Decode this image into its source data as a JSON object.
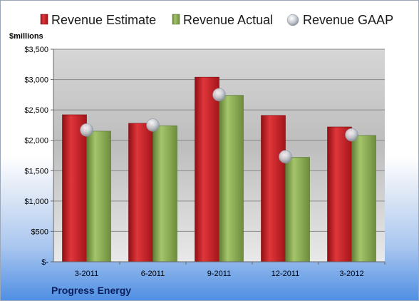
{
  "chart_data": {
    "type": "bar",
    "title": "",
    "unit_label": "$millions",
    "footer": "Progress Energy",
    "categories": [
      "3-2011",
      "6-2011",
      "9-2011",
      "12-2011",
      "3-2012"
    ],
    "y_ticks": [
      "$-",
      "$500",
      "$1,000",
      "$1,500",
      "$2,000",
      "$2,500",
      "$3,000",
      "$3,500"
    ],
    "ylim": [
      0,
      3500
    ],
    "grid": true,
    "legend_position": "top",
    "series": [
      {
        "name": "Revenue Estimate",
        "type": "bar",
        "color": "#c81e24",
        "values": [
          2420,
          2280,
          3040,
          2410,
          2220
        ]
      },
      {
        "name": "Revenue Actual",
        "type": "bar",
        "color": "#8caf52",
        "values": [
          2150,
          2240,
          2740,
          1720,
          2080
        ]
      },
      {
        "name": "Revenue GAAP",
        "type": "marker",
        "color": "#b9bfca",
        "values": [
          2170,
          2250,
          2750,
          1730,
          2090
        ]
      }
    ]
  }
}
